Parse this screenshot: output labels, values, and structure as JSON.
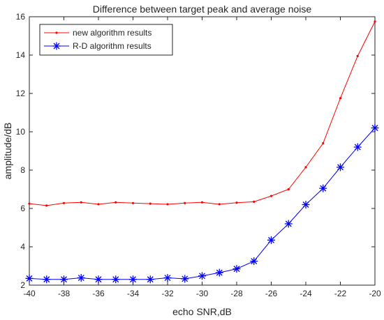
{
  "chart_data": {
    "type": "line",
    "title": "Difference between target peak and average noise",
    "xlabel": "echo SNR,dB",
    "ylabel": "amplitude/dB",
    "xlim": [
      -40,
      -20
    ],
    "ylim": [
      2,
      16
    ],
    "xticks": [
      -40,
      -38,
      -36,
      -34,
      -32,
      -30,
      -28,
      -26,
      -24,
      -22,
      -20
    ],
    "yticks": [
      2,
      4,
      6,
      8,
      10,
      12,
      14,
      16
    ],
    "grid": false,
    "legend": "top-left",
    "x": [
      -40,
      -39,
      -38,
      -37,
      -36,
      -35,
      -34,
      -33,
      -32,
      -31,
      -30,
      -29,
      -28,
      -27,
      -26,
      -25,
      -24,
      -23,
      -22,
      -21,
      -20
    ],
    "series": [
      {
        "name": "new algorithm results",
        "color": "#ff0000",
        "marker": "dot",
        "values": [
          6.25,
          6.15,
          6.28,
          6.32,
          6.22,
          6.32,
          6.28,
          6.25,
          6.22,
          6.28,
          6.32,
          6.22,
          6.3,
          6.35,
          6.65,
          7.0,
          8.15,
          9.4,
          11.75,
          13.95,
          15.75
        ]
      },
      {
        "name": "R-D algorithm results",
        "color": "#0000ff",
        "marker": "asterisk",
        "values": [
          2.35,
          2.3,
          2.3,
          2.38,
          2.3,
          2.3,
          2.3,
          2.3,
          2.38,
          2.33,
          2.48,
          2.65,
          2.85,
          3.25,
          4.35,
          5.2,
          6.2,
          7.05,
          8.15,
          9.2,
          10.2
        ]
      }
    ]
  }
}
